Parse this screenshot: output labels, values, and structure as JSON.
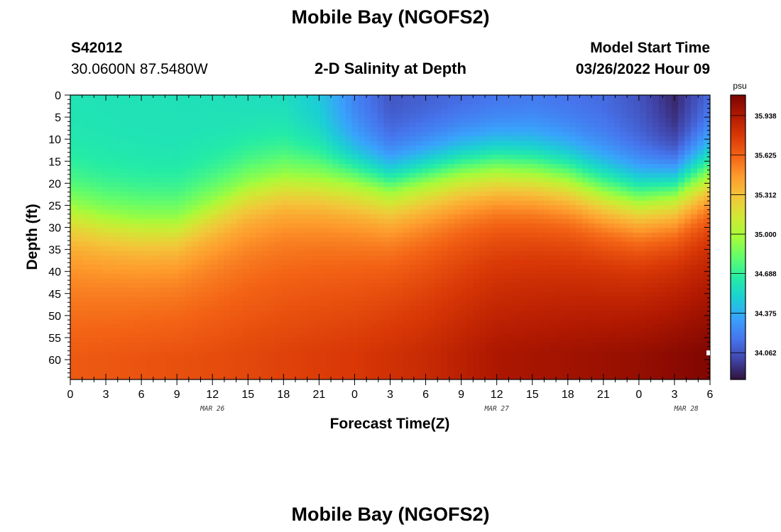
{
  "header": {
    "title": "Mobile Bay (NGOFS2)",
    "station_id": "S42012",
    "station_coords": "30.0600N  87.5480W",
    "model_start_label": "Model Start Time",
    "model_start_value": "03/26/2022 Hour 09",
    "footer_title": "Mobile Bay (NGOFS2)"
  },
  "colors": {
    "colormap_stops": [
      "#30123b",
      "#4145ab",
      "#4675ed",
      "#39a2fc",
      "#1bcfd4",
      "#24eca6",
      "#61fc6c",
      "#a4fc3b",
      "#d1e834",
      "#f3c63a",
      "#fe9b2d",
      "#f36315",
      "#d93806",
      "#b11901",
      "#7a0402"
    ]
  },
  "chart_data": {
    "type": "heatmap",
    "title": "2-D Salinity at Depth",
    "xlabel": "Forecast Time(Z)",
    "ylabel": "Depth (ft)",
    "x_tick_labels": [
      "0",
      "3",
      "6",
      "9",
      "12",
      "15",
      "18",
      "21",
      "0",
      "3",
      "6",
      "9",
      "12",
      "15",
      "18",
      "21",
      "0",
      "3",
      "6"
    ],
    "x_range_hours": [
      0,
      54
    ],
    "date_labels": [
      {
        "text": "MAR 26",
        "hour": 12
      },
      {
        "text": "MAR 27",
        "hour": 36
      },
      {
        "text": "MAR 28",
        "hour": 52
      }
    ],
    "y_ticks": [
      0,
      5,
      10,
      15,
      20,
      25,
      30,
      35,
      40,
      45,
      50,
      55,
      60
    ],
    "y_range_ft": [
      0,
      64.5
    ],
    "y_inverted": true,
    "colorbar": {
      "units": "psu",
      "vmin": 33.85,
      "vmax": 36.1,
      "tick_values": [
        34.062,
        34.375,
        34.688,
        35.0,
        35.312,
        35.625,
        35.938
      ],
      "tick_labels": [
        "34.062",
        "34.375",
        "34.688",
        "35.000",
        "35.312",
        "35.625",
        "35.938"
      ]
    },
    "halocline_depth_ft": [
      {
        "hour": 0,
        "depth": 25
      },
      {
        "hour": 3,
        "depth": 27
      },
      {
        "hour": 6,
        "depth": 28
      },
      {
        "hour": 9,
        "depth": 28
      },
      {
        "hour": 12,
        "depth": 24
      },
      {
        "hour": 15,
        "depth": 20
      },
      {
        "hour": 18,
        "depth": 18
      },
      {
        "hour": 21,
        "depth": 18.5
      },
      {
        "hour": 24,
        "depth": 20
      },
      {
        "hour": 27,
        "depth": 22
      },
      {
        "hour": 30,
        "depth": 20
      },
      {
        "hour": 33,
        "depth": 18
      },
      {
        "hour": 36,
        "depth": 17
      },
      {
        "hour": 39,
        "depth": 17.5
      },
      {
        "hour": 42,
        "depth": 19
      },
      {
        "hour": 45,
        "depth": 22
      },
      {
        "hour": 48,
        "depth": 24
      },
      {
        "hour": 51,
        "depth": 23
      },
      {
        "hour": 54,
        "depth": 18
      }
    ],
    "surface_salinity_psu": [
      {
        "hour": 0,
        "value": 34.6
      },
      {
        "hour": 12,
        "value": 34.58
      },
      {
        "hour": 18,
        "value": 34.55
      },
      {
        "hour": 21,
        "value": 34.45
      },
      {
        "hour": 24,
        "value": 34.2
      },
      {
        "hour": 27,
        "value": 34.05
      },
      {
        "hour": 33,
        "value": 34.1
      },
      {
        "hour": 39,
        "value": 34.15
      },
      {
        "hour": 45,
        "value": 34.12
      },
      {
        "hour": 48,
        "value": 34.05
      },
      {
        "hour": 51,
        "value": 33.9
      },
      {
        "hour": 54,
        "value": 34.1
      }
    ],
    "bottom_salinity_psu": [
      {
        "hour": 0,
        "value": 35.65
      },
      {
        "hour": 12,
        "value": 35.7
      },
      {
        "hour": 24,
        "value": 35.78
      },
      {
        "hour": 30,
        "value": 35.85
      },
      {
        "hour": 36,
        "value": 35.95
      },
      {
        "hour": 48,
        "value": 36.02
      },
      {
        "hour": 54,
        "value": 36.08
      }
    ]
  }
}
